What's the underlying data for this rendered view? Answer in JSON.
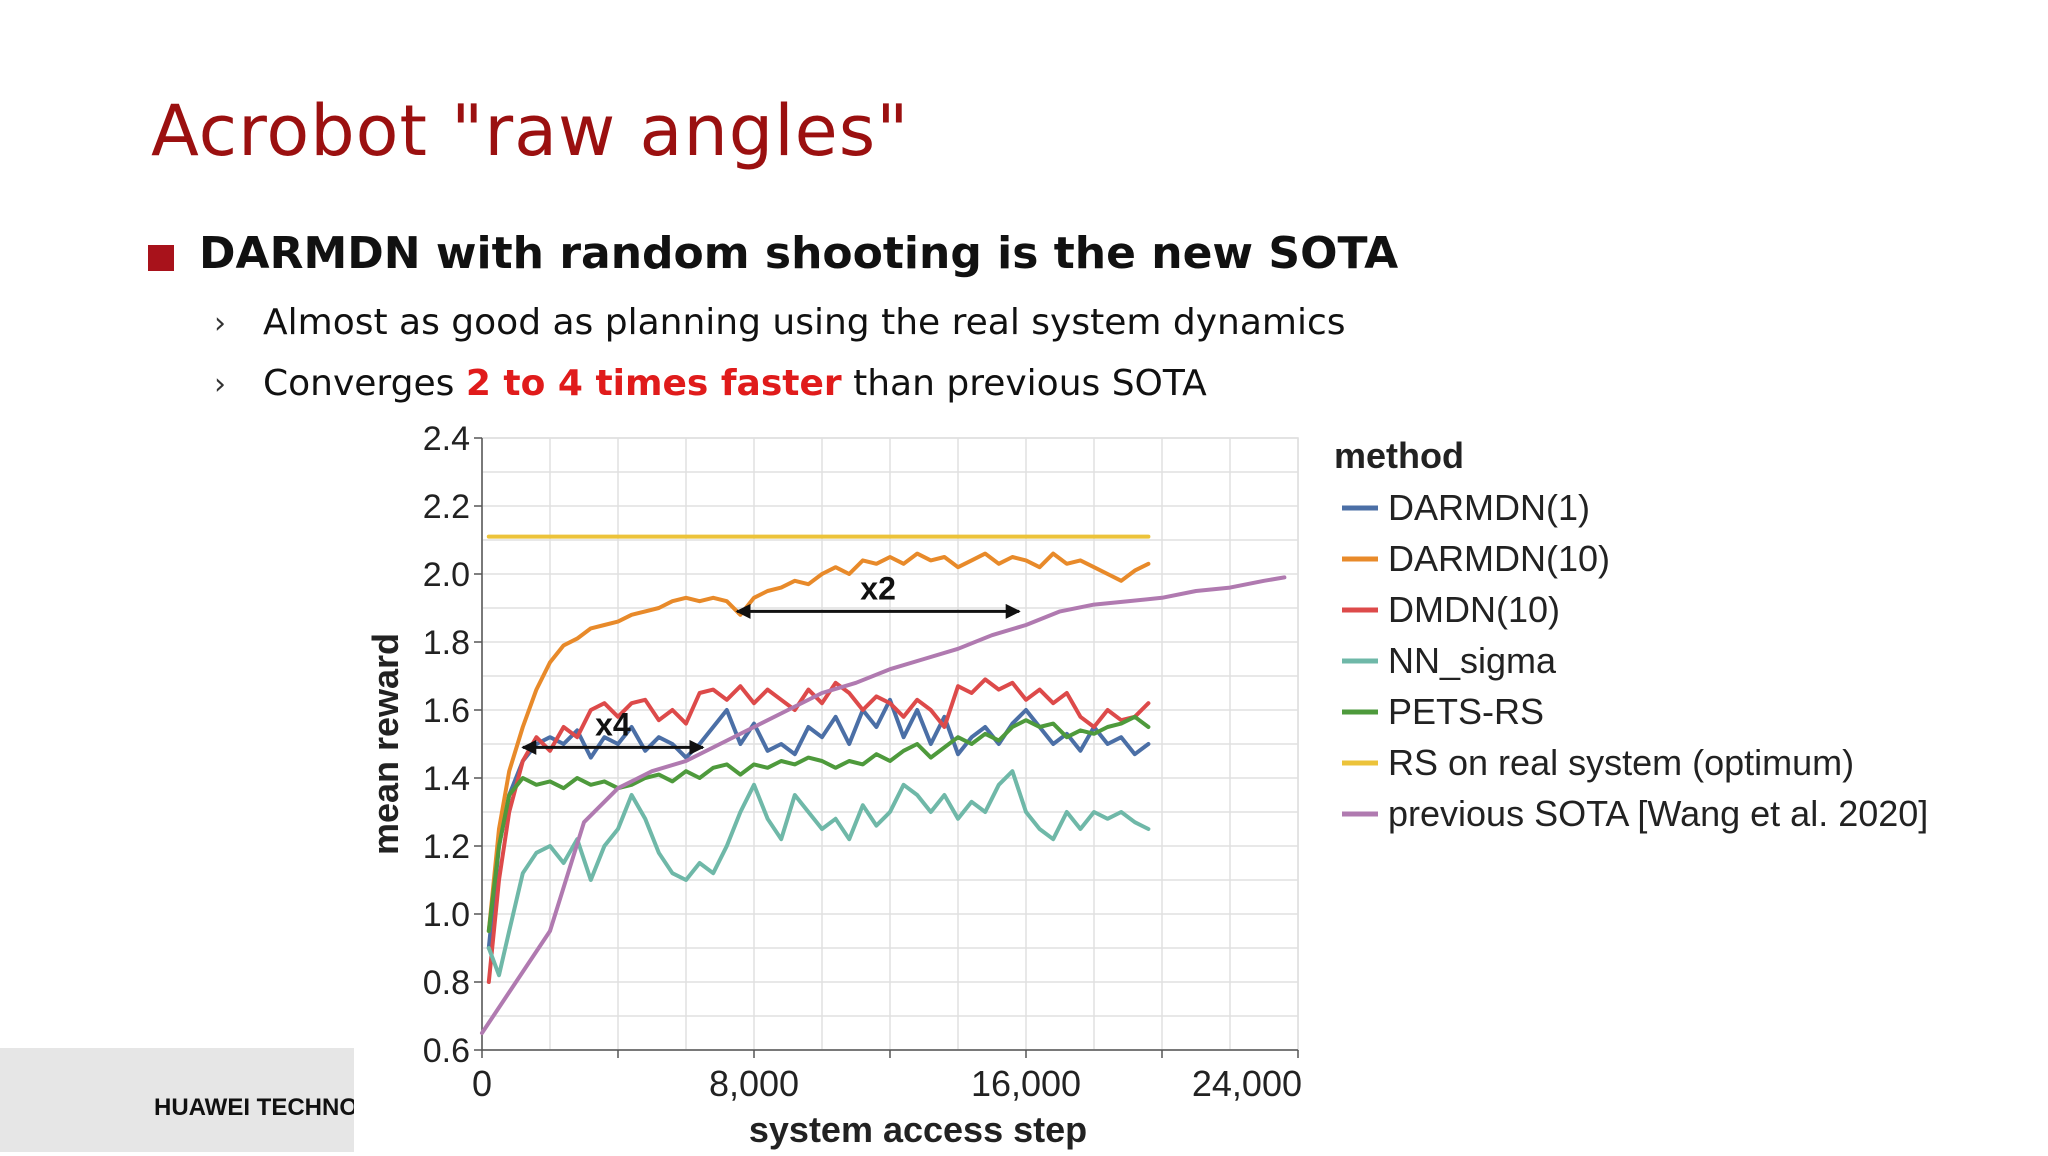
{
  "slide": {
    "title": "Acrobot \"raw angles\"",
    "bullet": "DARMDN with random shooting is the new SOTA",
    "sub1": "Almost as good as planning using the real system dynamics",
    "sub2_pre": "Converges ",
    "sub2_hl": "2 to 4 times faster",
    "sub2_post": " than previous SOTA",
    "sub_marker": "›",
    "footer": "HUAWEI TECHNOLOGIES"
  },
  "chart_data": {
    "type": "line",
    "xlabel": "system access step",
    "ylabel": "mean reward",
    "xlim": [
      0,
      24000
    ],
    "ylim": [
      0.6,
      2.4
    ],
    "xticks": [
      0,
      8000,
      16000,
      24000
    ],
    "xtick_labels": [
      "0",
      "8,000",
      "16,000",
      "24,000"
    ],
    "yticks": [
      0.6,
      0.8,
      1.0,
      1.2,
      1.4,
      1.6,
      1.8,
      2.0,
      2.2,
      2.4
    ],
    "ytick_labels": [
      "0.6",
      "0.8",
      "1.0",
      "1.2",
      "1.4",
      "1.6",
      "1.8",
      "2.0",
      "2.2",
      "2.4"
    ],
    "grid": true,
    "legend_title": "method",
    "legend_position": "right",
    "series": [
      {
        "name": "DARMDN(1)",
        "color": "#4b6fa6",
        "x": [
          200,
          500,
          800,
          1200,
          1600,
          2000,
          2400,
          2800,
          3200,
          3600,
          4000,
          4400,
          4800,
          5200,
          5600,
          6000,
          6400,
          6800,
          7200,
          7600,
          8000,
          8400,
          8800,
          9200,
          9600,
          10000,
          10400,
          10800,
          11200,
          11600,
          12000,
          12400,
          12800,
          13200,
          13600,
          14000,
          14400,
          14800,
          15200,
          15600,
          16000,
          16400,
          16800,
          17200,
          17600,
          18000,
          18400,
          18800,
          19200,
          19600
        ],
        "y": [
          0.9,
          1.2,
          1.35,
          1.45,
          1.5,
          1.52,
          1.5,
          1.54,
          1.46,
          1.52,
          1.5,
          1.55,
          1.48,
          1.52,
          1.5,
          1.46,
          1.5,
          1.55,
          1.6,
          1.5,
          1.56,
          1.48,
          1.5,
          1.47,
          1.55,
          1.52,
          1.58,
          1.5,
          1.6,
          1.55,
          1.63,
          1.52,
          1.6,
          1.5,
          1.58,
          1.47,
          1.52,
          1.55,
          1.5,
          1.56,
          1.6,
          1.55,
          1.5,
          1.53,
          1.48,
          1.55,
          1.5,
          1.52,
          1.47,
          1.5
        ]
      },
      {
        "name": "DARMDN(10)",
        "color": "#e88a2a",
        "x": [
          200,
          500,
          800,
          1200,
          1600,
          2000,
          2400,
          2800,
          3200,
          3600,
          4000,
          4400,
          4800,
          5200,
          5600,
          6000,
          6400,
          6800,
          7200,
          7600,
          8000,
          8400,
          8800,
          9200,
          9600,
          10000,
          10400,
          10800,
          11200,
          11600,
          12000,
          12400,
          12800,
          13200,
          13600,
          14000,
          14400,
          14800,
          15200,
          15600,
          16000,
          16400,
          16800,
          17200,
          17600,
          18000,
          18400,
          18800,
          19200,
          19600
        ],
        "y": [
          0.95,
          1.25,
          1.42,
          1.55,
          1.66,
          1.74,
          1.79,
          1.81,
          1.84,
          1.85,
          1.86,
          1.88,
          1.89,
          1.9,
          1.92,
          1.93,
          1.92,
          1.93,
          1.92,
          1.88,
          1.93,
          1.95,
          1.96,
          1.98,
          1.97,
          2.0,
          2.02,
          2.0,
          2.04,
          2.03,
          2.05,
          2.03,
          2.06,
          2.04,
          2.05,
          2.02,
          2.04,
          2.06,
          2.03,
          2.05,
          2.04,
          2.02,
          2.06,
          2.03,
          2.04,
          2.02,
          2.0,
          1.98,
          2.01,
          2.03
        ]
      },
      {
        "name": "DMDN(10)",
        "color": "#dd4a4a",
        "x": [
          200,
          500,
          800,
          1200,
          1600,
          2000,
          2400,
          2800,
          3200,
          3600,
          4000,
          4400,
          4800,
          5200,
          5600,
          6000,
          6400,
          6800,
          7200,
          7600,
          8000,
          8400,
          8800,
          9200,
          9600,
          10000,
          10400,
          10800,
          11200,
          11600,
          12000,
          12400,
          12800,
          13200,
          13600,
          14000,
          14400,
          14800,
          15200,
          15600,
          16000,
          16400,
          16800,
          17200,
          17600,
          18000,
          18400,
          18800,
          19200,
          19600
        ],
        "y": [
          0.8,
          1.1,
          1.3,
          1.45,
          1.52,
          1.48,
          1.55,
          1.52,
          1.6,
          1.62,
          1.58,
          1.62,
          1.63,
          1.57,
          1.6,
          1.56,
          1.65,
          1.66,
          1.63,
          1.67,
          1.62,
          1.66,
          1.63,
          1.6,
          1.66,
          1.62,
          1.68,
          1.65,
          1.6,
          1.64,
          1.62,
          1.58,
          1.63,
          1.6,
          1.55,
          1.67,
          1.65,
          1.69,
          1.66,
          1.68,
          1.63,
          1.66,
          1.62,
          1.65,
          1.58,
          1.55,
          1.6,
          1.57,
          1.58,
          1.62
        ]
      },
      {
        "name": "NN_sigma",
        "color": "#6fb8a8",
        "x": [
          200,
          500,
          800,
          1200,
          1600,
          2000,
          2400,
          2800,
          3200,
          3600,
          4000,
          4400,
          4800,
          5200,
          5600,
          6000,
          6400,
          6800,
          7200,
          7600,
          8000,
          8400,
          8800,
          9200,
          9600,
          10000,
          10400,
          10800,
          11200,
          11600,
          12000,
          12400,
          12800,
          13200,
          13600,
          14000,
          14400,
          14800,
          15200,
          15600,
          16000,
          16400,
          16800,
          17200,
          17600,
          18000,
          18400,
          18800,
          19200,
          19600
        ],
        "y": [
          0.9,
          0.82,
          0.95,
          1.12,
          1.18,
          1.2,
          1.15,
          1.22,
          1.1,
          1.2,
          1.25,
          1.35,
          1.28,
          1.18,
          1.12,
          1.1,
          1.15,
          1.12,
          1.2,
          1.3,
          1.38,
          1.28,
          1.22,
          1.35,
          1.3,
          1.25,
          1.28,
          1.22,
          1.32,
          1.26,
          1.3,
          1.38,
          1.35,
          1.3,
          1.35,
          1.28,
          1.33,
          1.3,
          1.38,
          1.42,
          1.3,
          1.25,
          1.22,
          1.3,
          1.25,
          1.3,
          1.28,
          1.3,
          1.27,
          1.25
        ]
      },
      {
        "name": "PETS-RS",
        "color": "#4e9a3c",
        "x": [
          200,
          500,
          800,
          1200,
          1600,
          2000,
          2400,
          2800,
          3200,
          3600,
          4000,
          4400,
          4800,
          5200,
          5600,
          6000,
          6400,
          6800,
          7200,
          7600,
          8000,
          8400,
          8800,
          9200,
          9600,
          10000,
          10400,
          10800,
          11200,
          11600,
          12000,
          12400,
          12800,
          13200,
          13600,
          14000,
          14400,
          14800,
          15200,
          15600,
          16000,
          16400,
          16800,
          17200,
          17600,
          18000,
          18400,
          18800,
          19200,
          19600
        ],
        "y": [
          0.95,
          1.2,
          1.35,
          1.4,
          1.38,
          1.39,
          1.37,
          1.4,
          1.38,
          1.39,
          1.37,
          1.38,
          1.4,
          1.41,
          1.39,
          1.42,
          1.4,
          1.43,
          1.44,
          1.41,
          1.44,
          1.43,
          1.45,
          1.44,
          1.46,
          1.45,
          1.43,
          1.45,
          1.44,
          1.47,
          1.45,
          1.48,
          1.5,
          1.46,
          1.49,
          1.52,
          1.5,
          1.53,
          1.51,
          1.55,
          1.57,
          1.55,
          1.56,
          1.52,
          1.54,
          1.53,
          1.55,
          1.56,
          1.58,
          1.55
        ]
      },
      {
        "name": "RS on real system (optimum)",
        "color": "#ecc33a",
        "x": [
          200,
          19600
        ],
        "y": [
          2.11,
          2.11
        ]
      },
      {
        "name": "previous SOTA [Wang et al. 2020]",
        "color": "#b07ab0",
        "x": [
          0,
          1000,
          2000,
          3000,
          4000,
          5000,
          6000,
          7000,
          8000,
          9000,
          10000,
          11000,
          12000,
          13000,
          14000,
          15000,
          16000,
          17000,
          18000,
          19000,
          20000,
          21000,
          22000,
          23000,
          23600
        ],
        "y": [
          0.65,
          0.8,
          0.95,
          1.27,
          1.37,
          1.42,
          1.45,
          1.5,
          1.55,
          1.6,
          1.65,
          1.68,
          1.72,
          1.75,
          1.78,
          1.82,
          1.85,
          1.89,
          1.91,
          1.92,
          1.93,
          1.95,
          1.96,
          1.98,
          1.99
        ]
      }
    ],
    "annotations": [
      {
        "text": "x4",
        "arrow_from": [
          1200,
          1.49
        ],
        "arrow_to": [
          6500,
          1.49
        ]
      },
      {
        "text": "x2",
        "arrow_from": [
          7500,
          1.89
        ],
        "arrow_to": [
          15800,
          1.89
        ]
      }
    ]
  }
}
